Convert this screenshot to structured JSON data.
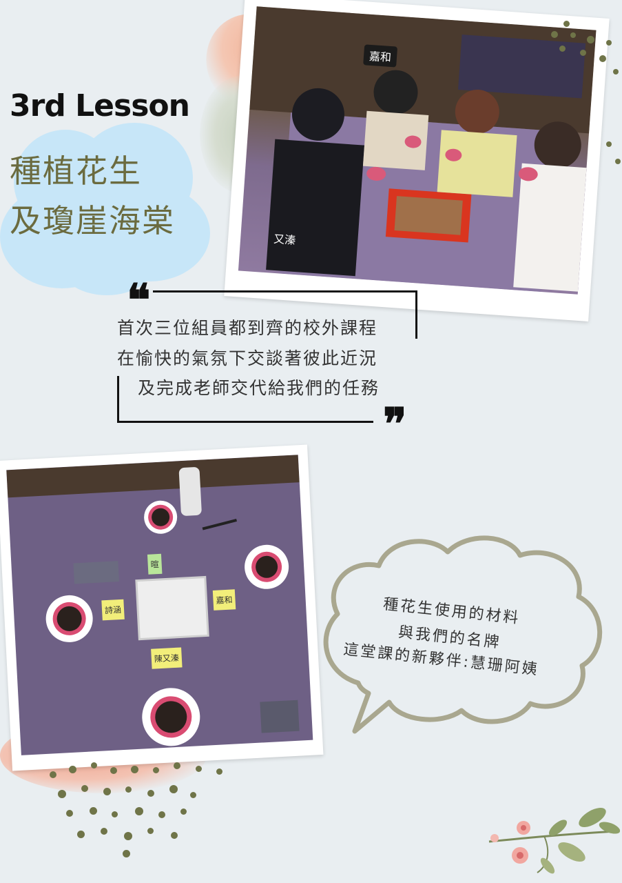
{
  "header": {
    "lesson_title": "3rd Lesson",
    "cn_title_line1": "種植花生",
    "cn_title_line2": "及瓊崖海棠"
  },
  "photo1": {
    "label_top": "嘉和",
    "label_bottom": "又溱"
  },
  "quote": {
    "open_mark": "❝",
    "close_mark": "❞",
    "lines": [
      "首次三位組員都到齊的校外課程",
      "在愉快的氣氛下交談著彼此近況",
      "及完成老師交代給我們的任務"
    ]
  },
  "photo2": {
    "name_cards": [
      "暄",
      "詩涵",
      "陳又溱",
      "嘉和"
    ]
  },
  "bubble": {
    "lines": [
      "種花生使用的材料",
      "與我們的名牌",
      "這堂課的新夥伴:慧珊阿姨"
    ]
  },
  "colors": {
    "background": "#e9eef1",
    "cloud": "#c7e6f8",
    "title_green": "#6b6b3f",
    "bubble_border": "#a9a78f",
    "dots": "#6f7448"
  }
}
